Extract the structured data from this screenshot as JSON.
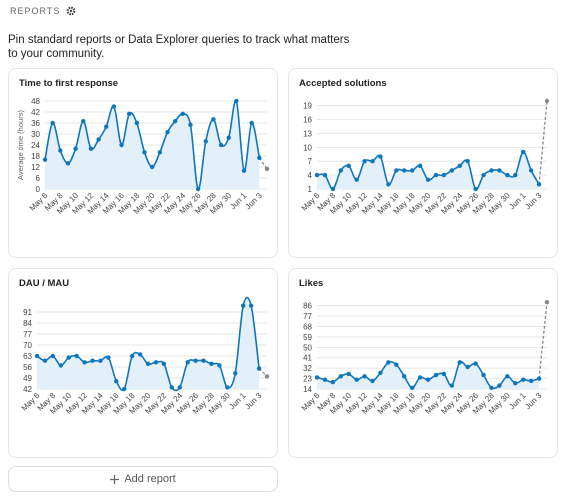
{
  "header": {
    "title": "REPORTS",
    "description": "Pin standard reports or Data Explorer queries to track what matters to your community."
  },
  "chart_data": [
    {
      "type": "line",
      "title": "Time to first response",
      "y_label": "Average time (hours)",
      "categories": [
        "May 6",
        null,
        "May 8",
        null,
        "May 10",
        null,
        "May 12",
        null,
        "May 14",
        null,
        "May 16",
        null,
        "May 18",
        null,
        "May 20",
        null,
        "May 22",
        null,
        "May 24",
        null,
        "May 26",
        null,
        "May 28",
        null,
        "May 30",
        null,
        "Jun 1",
        null,
        "Jun 3",
        null
      ],
      "values": [
        16,
        36,
        21,
        14,
        22,
        37,
        22,
        27,
        34,
        45,
        24,
        41,
        36,
        20,
        12,
        20,
        31,
        37,
        41,
        35,
        0,
        26,
        38,
        24,
        28,
        48,
        10,
        36,
        17,
        11
      ],
      "ylim": [
        0,
        48
      ],
      "yticks": [
        0,
        6,
        12,
        18,
        24,
        30,
        36,
        42,
        48
      ],
      "grid": true,
      "color": "#0e76bd",
      "fill_color": "#e3f0fa",
      "incomplete_last": true
    },
    {
      "type": "line",
      "title": "Accepted solutions",
      "categories": [
        "May 6",
        null,
        "May 8",
        null,
        "May 10",
        null,
        "May 12",
        null,
        "May 14",
        null,
        "May 16",
        null,
        "May 18",
        null,
        "May 20",
        null,
        "May 22",
        null,
        "May 24",
        null,
        "May 26",
        null,
        "May 28",
        null,
        "May 30",
        null,
        "Jun 1",
        null,
        "Jun 3",
        null
      ],
      "values": [
        4,
        4,
        1,
        5,
        6,
        3,
        7,
        7,
        8,
        2,
        5,
        5,
        5,
        6,
        3,
        4,
        4,
        5,
        6,
        7,
        1,
        4,
        5,
        5,
        4,
        4,
        9,
        5,
        2,
        20
      ],
      "ylim": [
        1,
        20
      ],
      "yticks": [
        1,
        4,
        7,
        10,
        13,
        16,
        19
      ],
      "grid": true,
      "color": "#0e76bd",
      "fill_color": "#e3f0fa",
      "incomplete_last": true
    },
    {
      "type": "line",
      "title": "DAU / MAU",
      "categories": [
        "May 6",
        null,
        "May 8",
        null,
        "May 10",
        null,
        "May 12",
        null,
        "May 14",
        null,
        "May 16",
        null,
        "May 18",
        null,
        "May 20",
        null,
        "May 22",
        null,
        "May 24",
        null,
        "May 26",
        null,
        "May 28",
        null,
        "May 30",
        null,
        "Jun 1",
        null,
        "Jun 3",
        null
      ],
      "values": [
        63,
        60,
        63,
        57,
        62,
        63,
        59,
        60,
        60,
        62,
        47,
        42,
        63,
        64,
        58,
        59,
        58,
        43,
        43,
        59,
        60,
        60,
        58,
        57,
        43,
        52,
        95,
        95,
        55,
        50
      ],
      "ylim": [
        42,
        98
      ],
      "yticks": [
        42,
        49,
        56,
        63,
        70,
        77,
        84,
        91
      ],
      "grid": true,
      "color": "#0e76bd",
      "fill_color": "#e3f0fa",
      "incomplete_last": true
    },
    {
      "type": "line",
      "title": "Likes",
      "categories": [
        "May 6",
        null,
        "May 8",
        null,
        "May 10",
        null,
        "May 12",
        null,
        "May 14",
        null,
        "May 16",
        null,
        "May 18",
        null,
        "May 20",
        null,
        "May 22",
        null,
        "May 24",
        null,
        "May 26",
        null,
        "May 28",
        null,
        "May 30",
        null,
        "Jun 1",
        null,
        "Jun 3",
        null
      ],
      "values": [
        24,
        22,
        20,
        25,
        27,
        22,
        25,
        21,
        28,
        37,
        35,
        25,
        15,
        24,
        22,
        26,
        27,
        17,
        37,
        33,
        36,
        26,
        15,
        17,
        25,
        19,
        22,
        21,
        23,
        89
      ],
      "ylim": [
        14,
        90
      ],
      "yticks": [
        14,
        23,
        32,
        41,
        50,
        59,
        68,
        77,
        86
      ],
      "grid": true,
      "color": "#0e76bd",
      "fill_color": "#e3f0fa",
      "incomplete_last": true
    }
  ],
  "add_button": {
    "label": "Add report"
  }
}
